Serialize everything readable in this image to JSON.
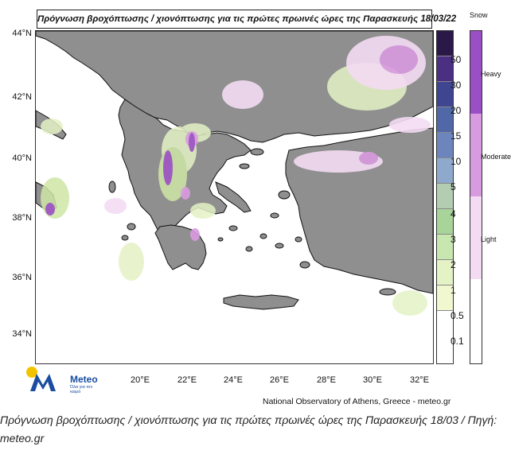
{
  "map": {
    "title": "Πρόγνωση βροχόπτωσης / χιονόπτωσης για τις πρώτες πρωινές ώρες της Παρασκευής 18/03/22",
    "lat_labels": [
      "44°N",
      "42°N",
      "40°N",
      "38°N",
      "36°N",
      "34°N"
    ],
    "lon_labels": [
      "20°E",
      "22°E",
      "24°E",
      "26°E",
      "28°E",
      "30°E",
      "32°E"
    ],
    "colors": {
      "land": "#8f8f8f",
      "sea": "#ffffff",
      "coast": "#111111",
      "rain_light": "#e8f2c0",
      "rain_mid": "#cfe6a6",
      "rain_high": "#a8d49a",
      "snow_light": "#f3dcf3",
      "snow_moderate": "#d99be0",
      "snow_heavy": "#9b4fc4"
    }
  },
  "rain_legend": {
    "values": [
      "50",
      "30",
      "20",
      "15",
      "10",
      "5",
      "4",
      "3",
      "2",
      "1",
      "0.5",
      "0.1"
    ],
    "colors": [
      "#2a1848",
      "#4a2f82",
      "#3f4590",
      "#5067a8",
      "#6c86bd",
      "#8fa9cc",
      "#b3cdb3",
      "#a8d49a",
      "#c8e6b0",
      "#e4f2c6",
      "#f1f7cf",
      "#ffffff"
    ]
  },
  "snow_legend": {
    "title": "Snow",
    "heavy": "Heavy",
    "moderate": "Moderate",
    "light": "Light"
  },
  "logo": {
    "name": "Meteo",
    "tagline": "Όλα για τον καιρό"
  },
  "source": "National Observatory of Athens, Greece - meteo.gr",
  "caption": "Πρόγνωση βροχόπτωσης / χιονόπτωσης για τις πρώτες  πρωινές ώρες της Παρασκευής 18/03 / Πηγή: meteo.gr"
}
